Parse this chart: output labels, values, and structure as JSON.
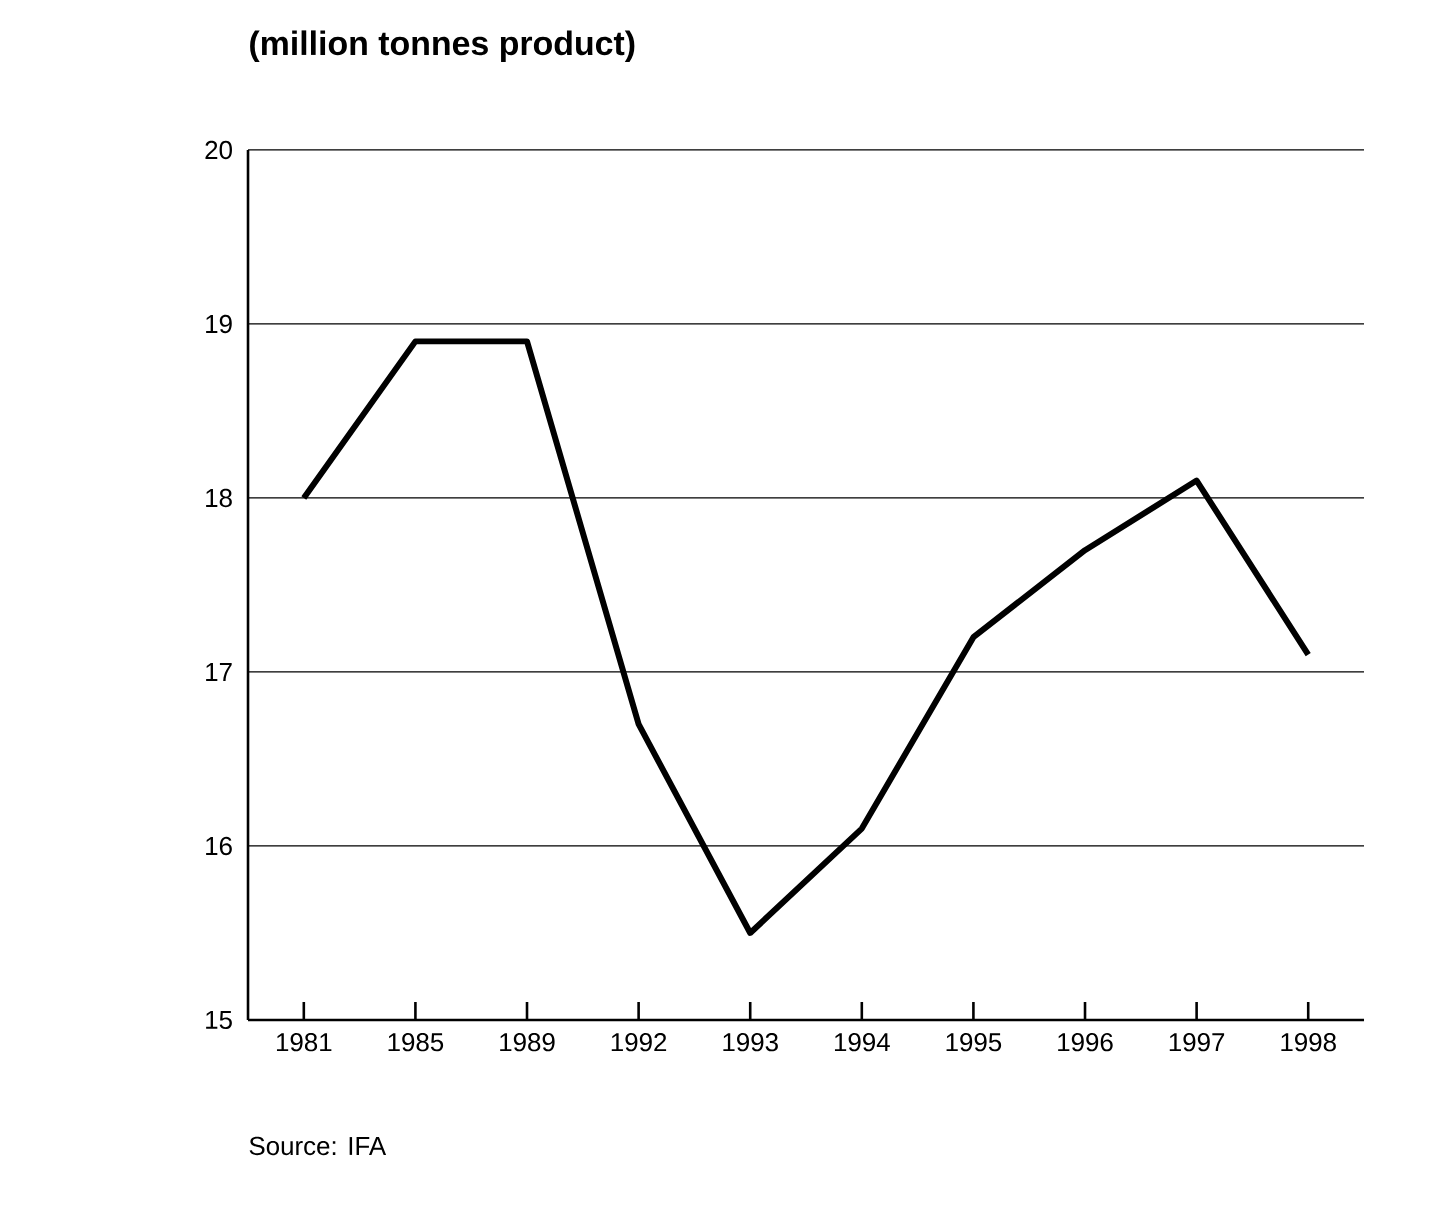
{
  "chart_data": {
    "type": "line",
    "title": "(million tonnes product)",
    "categories": [
      "1981",
      "1985",
      "1989",
      "1992",
      "1993",
      "1994",
      "1995",
      "1996",
      "1997",
      "1998"
    ],
    "values": [
      18.0,
      18.9,
      18.9,
      16.7,
      15.5,
      16.1,
      17.2,
      17.7,
      18.1,
      17.1
    ],
    "color": "#000000",
    "ylim": [
      15,
      20
    ],
    "yticks": [
      15,
      16,
      17,
      18,
      19,
      20
    ],
    "grid": "y",
    "marker": "none",
    "line_style": "solid",
    "annotations": [
      "Source: IFA"
    ]
  }
}
